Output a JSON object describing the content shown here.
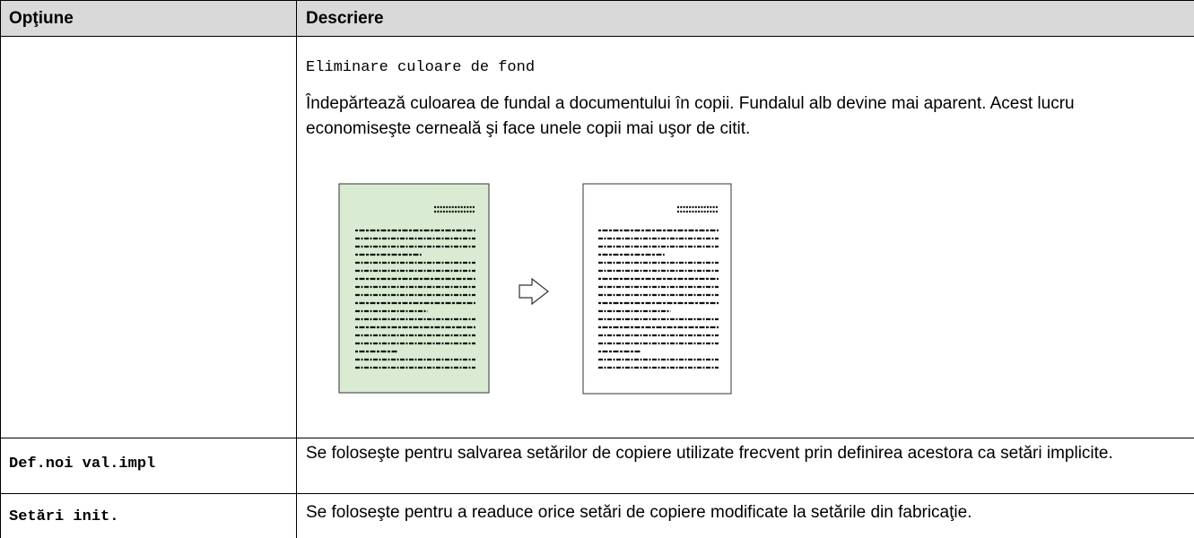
{
  "table": {
    "headers": [
      "Opţiune",
      "Descriere"
    ],
    "rows": [
      {
        "setting": "Eliminare culoare de fond",
        "description": "Îndepărtează culoarea de fundal a documentului în copii. Fundalul alb devine mai aparent. Acest lucru economiseşte cerneală şi face unele copii mai uşor de citit."
      },
      {
        "option": "Def.noi val.impl",
        "description": "Se foloseşte pentru salvarea setărilor de copiere utilizate frecvent prin definirea acestora ca setări implicite."
      },
      {
        "option": "Setări init.",
        "description": "Se foloseşte pentru a readuce orice setări de copiere modificate la setările din fabricaţie."
      }
    ]
  }
}
